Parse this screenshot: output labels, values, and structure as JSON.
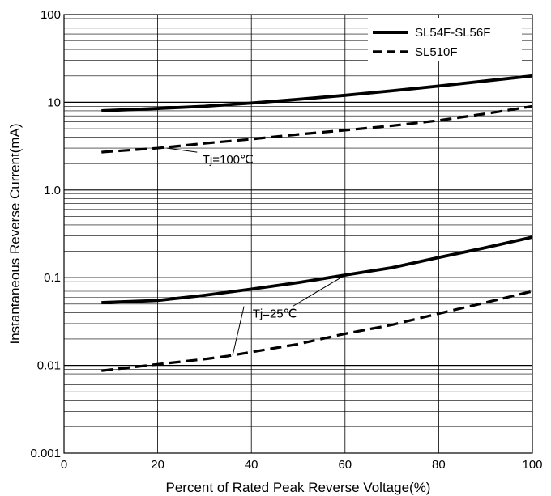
{
  "chart_data": {
    "type": "line",
    "title": "",
    "xlabel": "Percent of Rated Peak Reverse Voltage(%)",
    "ylabel": "Instantaneous Reverse Current(mA)",
    "xlim": [
      0,
      100
    ],
    "ylim": [
      0.001,
      100
    ],
    "yscale": "log",
    "grid": true,
    "legend_position": "top-right",
    "x_ticks": [
      0,
      20,
      40,
      60,
      80,
      100
    ],
    "x_tick_labels": [
      "0",
      "20",
      "40",
      "60",
      "80",
      "100"
    ],
    "y_ticks": [
      0.001,
      0.01,
      0.1,
      1,
      10,
      100
    ],
    "y_tick_labels": [
      "0.001",
      "0.01",
      "0.1",
      "1.0",
      "10",
      "100"
    ],
    "series": [
      {
        "name": "SL54F-SL56F",
        "style": "solid",
        "group": "Tj=100℃",
        "points": [
          [
            8,
            8.0
          ],
          [
            20,
            8.5
          ],
          [
            30,
            9.0
          ],
          [
            40,
            9.8
          ],
          [
            50,
            10.8
          ],
          [
            60,
            12.0
          ],
          [
            70,
            13.5
          ],
          [
            80,
            15.3
          ],
          [
            90,
            17.5
          ],
          [
            100,
            20.0
          ]
        ]
      },
      {
        "name": "SL510F",
        "style": "dashed",
        "group": "Tj=100℃",
        "points": [
          [
            8,
            2.7
          ],
          [
            20,
            3.0
          ],
          [
            30,
            3.4
          ],
          [
            40,
            3.8
          ],
          [
            50,
            4.3
          ],
          [
            60,
            4.8
          ],
          [
            70,
            5.4
          ],
          [
            80,
            6.2
          ],
          [
            90,
            7.4
          ],
          [
            100,
            9.0
          ]
        ]
      },
      {
        "name": "SL54F-SL56F",
        "style": "solid",
        "group": "Tj=25℃",
        "points": [
          [
            8,
            0.052
          ],
          [
            20,
            0.055
          ],
          [
            30,
            0.063
          ],
          [
            40,
            0.074
          ],
          [
            50,
            0.088
          ],
          [
            60,
            0.107
          ],
          [
            70,
            0.13
          ],
          [
            80,
            0.17
          ],
          [
            90,
            0.22
          ],
          [
            100,
            0.29
          ]
        ]
      },
      {
        "name": "SL510F",
        "style": "dashed",
        "group": "Tj=25℃",
        "points": [
          [
            8,
            0.0087
          ],
          [
            20,
            0.0103
          ],
          [
            30,
            0.0118
          ],
          [
            35,
            0.0128
          ],
          [
            40,
            0.0142
          ],
          [
            50,
            0.0175
          ],
          [
            60,
            0.023
          ],
          [
            70,
            0.029
          ],
          [
            80,
            0.039
          ],
          [
            90,
            0.052
          ],
          [
            100,
            0.07
          ]
        ]
      }
    ],
    "legend": [
      {
        "label": "SL54F-SL56F",
        "style": "solid"
      },
      {
        "label": "SL510F",
        "style": "dashed"
      }
    ],
    "annotations": [
      {
        "text": "Tj=100℃",
        "x": 35,
        "y": 2.0,
        "arrow_to": [
          22,
          3.0
        ]
      },
      {
        "text": "Tj=25℃",
        "x": 45,
        "y": 0.035,
        "arrow_to": [
          [
            60,
            0.107
          ],
          [
            36,
            0.013
          ]
        ]
      }
    ],
    "colors": {
      "line": "#000000",
      "grid": "#000000",
      "background": "#ffffff"
    }
  }
}
